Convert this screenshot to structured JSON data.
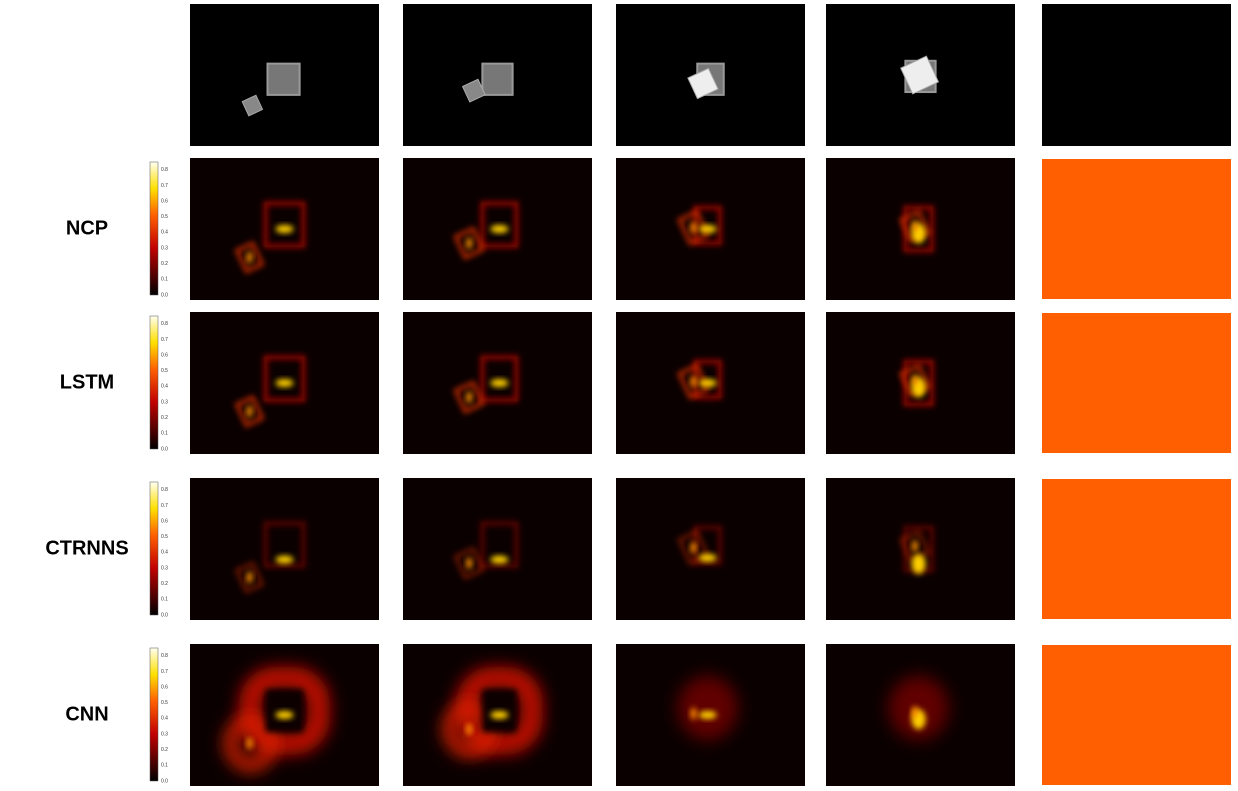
{
  "rows": [
    {
      "label": "NCP"
    },
    {
      "label": "LSTM"
    },
    {
      "label": "CTRNNS"
    },
    {
      "label": "CNN"
    }
  ],
  "colorbar": {
    "ticks": [
      "0.0",
      "0.1",
      "0.2",
      "0.3",
      "0.4",
      "0.5",
      "0.6",
      "0.7",
      "0.8"
    ]
  }
}
